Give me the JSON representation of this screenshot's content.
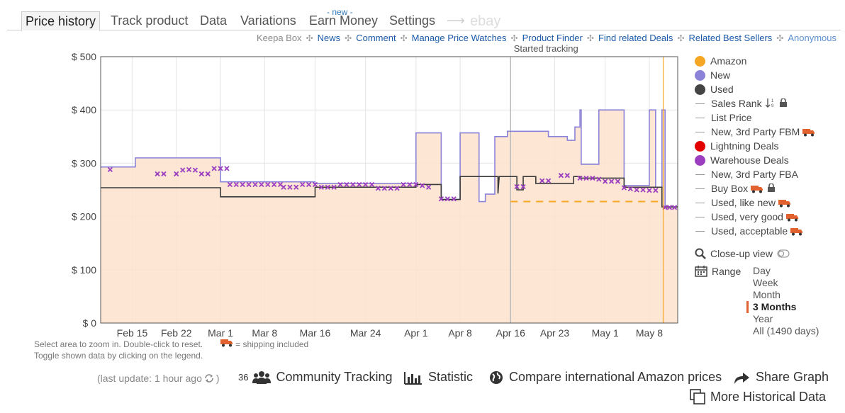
{
  "tabs": [
    {
      "label": "Price history",
      "active": true
    },
    {
      "label": "Track product"
    },
    {
      "label": "Data"
    },
    {
      "label": "Variations"
    },
    {
      "label": "Earn Money",
      "badge": "- new -"
    },
    {
      "label": "Settings"
    }
  ],
  "ebay_label": "ebay",
  "subnav": [
    "Keepa Box",
    "News",
    "Comment",
    "Manage Price Watches",
    "Product Finder",
    "Find related Deals",
    "Related Best Sellers",
    "Anonymous"
  ],
  "chart_annotation": "Started tracking",
  "chart_data": {
    "type": "line",
    "ylabel_ticks": [
      "$ 0",
      "$ 100",
      "$ 200",
      "$ 300",
      "$ 400",
      "$ 500"
    ],
    "ylim": [
      0,
      500
    ],
    "x_ticks": [
      "Feb 15",
      "Feb 22",
      "Mar 1",
      "Mar 8",
      "Mar 16",
      "Mar 24",
      "Apr 1",
      "Apr 8",
      "Apr 16",
      "Apr 23",
      "May 1",
      "May 8"
    ],
    "x_tick_days": [
      5,
      12,
      19,
      26,
      34,
      42,
      50,
      57,
      65,
      72,
      80,
      87
    ],
    "x_domain_days": [
      0,
      91.5
    ],
    "grid": true,
    "started_tracking_day": 65,
    "series": [
      {
        "name": "New",
        "color": "#8b83d8",
        "fill": "#fde3cc",
        "points": [
          [
            0,
            293
          ],
          [
            5.5,
            293
          ],
          [
            5.5,
            310
          ],
          [
            19,
            310
          ],
          [
            19,
            265
          ],
          [
            34,
            265
          ],
          [
            34,
            262
          ],
          [
            50,
            262
          ],
          [
            50,
            357
          ],
          [
            54,
            357
          ],
          [
            54,
            232
          ],
          [
            57,
            232
          ],
          [
            57,
            357
          ],
          [
            60,
            357
          ],
          [
            60,
            228
          ],
          [
            61,
            228
          ],
          [
            61,
            242
          ],
          [
            62.5,
            242
          ],
          [
            62.5,
            350
          ],
          [
            64.5,
            350
          ],
          [
            64.5,
            360
          ],
          [
            71,
            360
          ],
          [
            71,
            350
          ],
          [
            74,
            350
          ],
          [
            74,
            343
          ],
          [
            75.2,
            343
          ],
          [
            75.2,
            368
          ],
          [
            76,
            368
          ],
          [
            76,
            400
          ],
          [
            76.2,
            400
          ],
          [
            76.2,
            298
          ],
          [
            79,
            298
          ],
          [
            79,
            400
          ],
          [
            83,
            400
          ],
          [
            83,
            258
          ],
          [
            87,
            258
          ],
          [
            87,
            400
          ],
          [
            88,
            400
          ],
          [
            88,
            255
          ],
          [
            89,
            255
          ],
          [
            89,
            400
          ],
          [
            89.5,
            400
          ],
          [
            89.5,
            218
          ],
          [
            91.5,
            218
          ]
        ]
      },
      {
        "name": "Used",
        "color": "#3a3a3a",
        "points": [
          [
            0,
            254
          ],
          [
            19,
            254
          ],
          [
            19,
            237
          ],
          [
            34,
            237
          ],
          [
            34,
            255
          ],
          [
            50,
            255
          ],
          [
            50,
            260
          ],
          [
            54,
            260
          ],
          [
            54,
            232
          ],
          [
            57,
            232
          ],
          [
            57,
            275
          ],
          [
            63,
            275
          ],
          [
            63,
            243
          ],
          [
            63.2,
            275
          ],
          [
            66,
            275
          ],
          [
            66,
            250
          ],
          [
            67,
            250
          ],
          [
            67,
            275
          ],
          [
            69,
            275
          ],
          [
            69,
            262
          ],
          [
            75,
            262
          ],
          [
            75,
            275
          ],
          [
            76,
            275
          ],
          [
            76,
            272
          ],
          [
            83,
            272
          ],
          [
            83,
            255
          ],
          [
            89,
            255
          ],
          [
            89,
            218
          ],
          [
            91.5,
            218
          ]
        ]
      },
      {
        "name": "Amazon",
        "color": "#f5a623",
        "dashed": true,
        "points": [
          [
            65,
            228
          ],
          [
            89,
            228
          ]
        ]
      }
    ],
    "warehouse_deals": {
      "name": "Warehouse Deals",
      "color": "#9b3fc0",
      "points": [
        [
          1.5,
          288
        ],
        [
          9,
          280
        ],
        [
          10,
          280
        ],
        [
          12,
          280
        ],
        [
          13,
          287
        ],
        [
          14,
          288
        ],
        [
          15,
          287
        ],
        [
          16,
          280
        ],
        [
          17,
          280
        ],
        [
          18,
          290
        ],
        [
          19,
          290
        ],
        [
          20,
          290
        ],
        [
          20.5,
          260
        ],
        [
          21.5,
          260
        ],
        [
          22.5,
          260
        ],
        [
          23.5,
          260
        ],
        [
          24.5,
          260
        ],
        [
          25.5,
          260
        ],
        [
          26.5,
          260
        ],
        [
          27.5,
          260
        ],
        [
          28.5,
          260
        ],
        [
          29,
          255
        ],
        [
          30,
          255
        ],
        [
          31,
          255
        ],
        [
          32,
          260
        ],
        [
          33,
          260
        ],
        [
          34,
          260
        ],
        [
          35,
          255
        ],
        [
          36,
          255
        ],
        [
          37,
          255
        ],
        [
          38,
          260
        ],
        [
          39,
          260
        ],
        [
          40,
          260
        ],
        [
          41,
          260
        ],
        [
          42,
          260
        ],
        [
          43,
          260
        ],
        [
          44,
          253
        ],
        [
          45,
          253
        ],
        [
          46,
          253
        ],
        [
          47,
          253
        ],
        [
          48,
          260
        ],
        [
          49,
          260
        ],
        [
          50,
          260
        ],
        [
          51,
          258
        ],
        [
          52,
          255
        ],
        [
          54,
          233
        ],
        [
          55,
          233
        ],
        [
          56,
          233
        ],
        [
          66,
          256
        ],
        [
          67,
          256
        ],
        [
          70,
          267
        ],
        [
          71,
          267
        ],
        [
          73,
          277
        ],
        [
          74,
          277
        ],
        [
          76,
          272
        ],
        [
          77,
          272
        ],
        [
          78,
          272
        ],
        [
          79,
          270
        ],
        [
          80,
          266
        ],
        [
          81,
          266
        ],
        [
          82,
          266
        ],
        [
          83,
          254
        ],
        [
          84,
          252
        ],
        [
          85,
          250
        ],
        [
          86,
          250
        ],
        [
          87,
          249
        ],
        [
          88,
          249
        ],
        [
          89.5,
          217
        ],
        [
          90.2,
          217
        ],
        [
          91,
          217
        ]
      ]
    },
    "vertical_marker_day": 89.2
  },
  "legend": [
    {
      "label": "Amazon",
      "kind": "dot",
      "color": "#f5a623"
    },
    {
      "label": "New",
      "kind": "dot",
      "color": "#8b83d8"
    },
    {
      "label": "Used",
      "kind": "dot",
      "color": "#444444"
    },
    {
      "label": "Sales Rank",
      "kind": "line",
      "icons": [
        "sort-icon",
        "lock-icon"
      ]
    },
    {
      "label": "List Price",
      "kind": "line"
    },
    {
      "label": "New, 3rd Party FBM",
      "kind": "line",
      "icons": [
        "truck-icon"
      ]
    },
    {
      "label": "Lightning Deals",
      "kind": "dot",
      "color": "#e20000"
    },
    {
      "label": "Warehouse Deals",
      "kind": "dot",
      "color": "#9b3fc0"
    },
    {
      "label": "New, 3rd Party FBA",
      "kind": "line"
    },
    {
      "label": "Buy Box",
      "kind": "line",
      "icons": [
        "truck-icon",
        "lock-icon"
      ]
    },
    {
      "label": "Used, like new",
      "kind": "line",
      "icons": [
        "truck-icon"
      ]
    },
    {
      "label": "Used, very good",
      "kind": "line",
      "icons": [
        "truck-icon"
      ]
    },
    {
      "label": "Used, acceptable",
      "kind": "line",
      "icons": [
        "truck-icon"
      ]
    }
  ],
  "closeup_label": "Close-up view",
  "range": {
    "label": "Range",
    "options": [
      "Day",
      "Week",
      "Month",
      "3 Months",
      "Year",
      "All (1490 days)"
    ],
    "selected": "3 Months"
  },
  "hints": {
    "line1": "Select area to zoom in. Double-click to reset.",
    "shipping": "= shipping included",
    "line2": "Toggle shown data by clicking on the legend."
  },
  "footer": {
    "last_update": "(last update: 1 hour ago",
    "last_update_close": ")",
    "tracking_count": "36",
    "community_tracking": "Community Tracking",
    "statistic": "Statistic",
    "compare": "Compare international Amazon prices",
    "share": "Share Graph",
    "more": "More Historical Data"
  }
}
